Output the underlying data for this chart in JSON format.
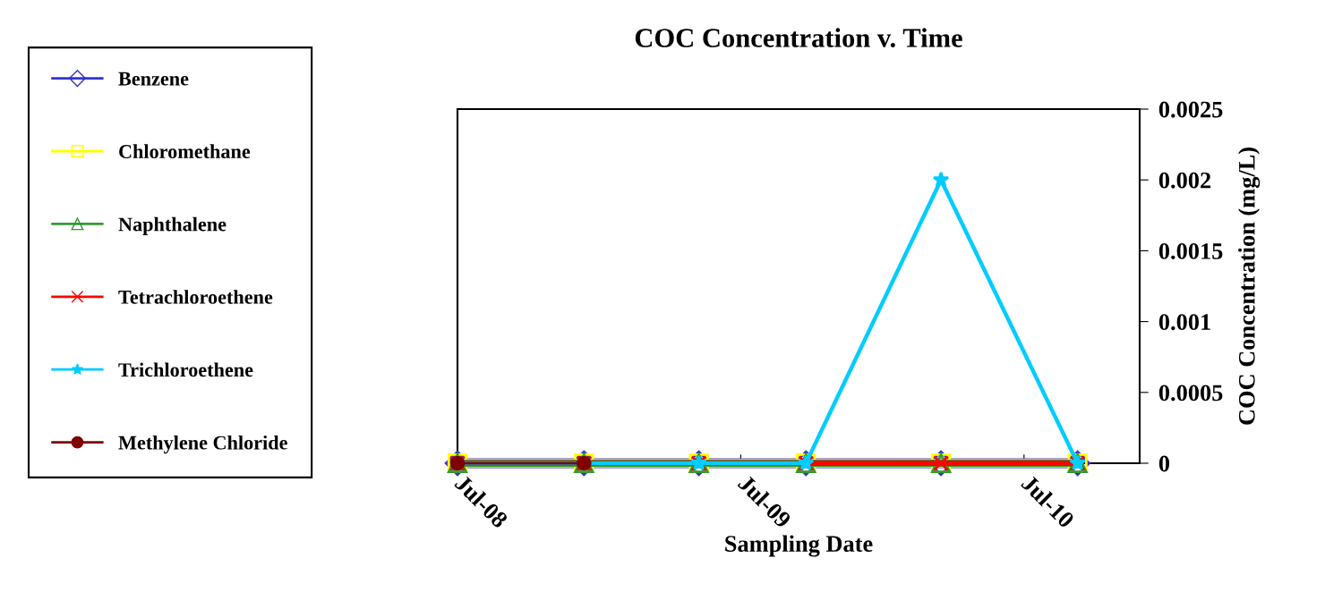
{
  "chart_data": {
    "type": "line",
    "title": "COC Concentration v. Time",
    "xlabel": "Sampling Date",
    "ylabel": "COC Concentration (mg/L)",
    "x": [
      "2008-07-01",
      "2008-12-11",
      "2009-05-08",
      "2009-09-23",
      "2010-03-16",
      "2010-09-08"
    ],
    "series": [
      {
        "name": "Benzene",
        "color": "#3333cc",
        "marker": "diamond",
        "values": [
          0,
          0,
          0,
          0,
          0,
          0
        ]
      },
      {
        "name": "Chloromethane",
        "color": "#ffff00",
        "marker": "square",
        "values": [
          0,
          0,
          0,
          0,
          0,
          0
        ]
      },
      {
        "name": "Naphthalene",
        "color": "#339933",
        "marker": "triangle",
        "values": [
          0,
          0,
          0,
          0,
          0,
          0
        ]
      },
      {
        "name": "Tetrachloroethene",
        "color": "#ff0000",
        "marker": "cross",
        "values": [
          0,
          0,
          0,
          0,
          0,
          0
        ]
      },
      {
        "name": "Trichloroethene",
        "color": "#00ccff",
        "marker": "star",
        "values": [
          0,
          0,
          0,
          0,
          0.002,
          0
        ]
      },
      {
        "name": "Methylene Chloride",
        "color": "#800000",
        "marker": "circle",
        "values": [
          0,
          0,
          null,
          null,
          null,
          null
        ]
      }
    ],
    "xlim": [
      "2008-07-01",
      "2010-11-27"
    ],
    "xticks": [
      {
        "value": "2008-07-01",
        "label": "Jul-08"
      },
      {
        "value": "2009-07-01",
        "label": "Jul-09"
      },
      {
        "value": "2010-07-01",
        "label": "Jul-10"
      }
    ],
    "ylim": [
      0,
      0.0025
    ],
    "yticks": [
      0,
      0.0005,
      0.001,
      0.0015,
      0.002,
      0.0025
    ],
    "grid": false,
    "legend": "left",
    "line_style": "solid"
  }
}
